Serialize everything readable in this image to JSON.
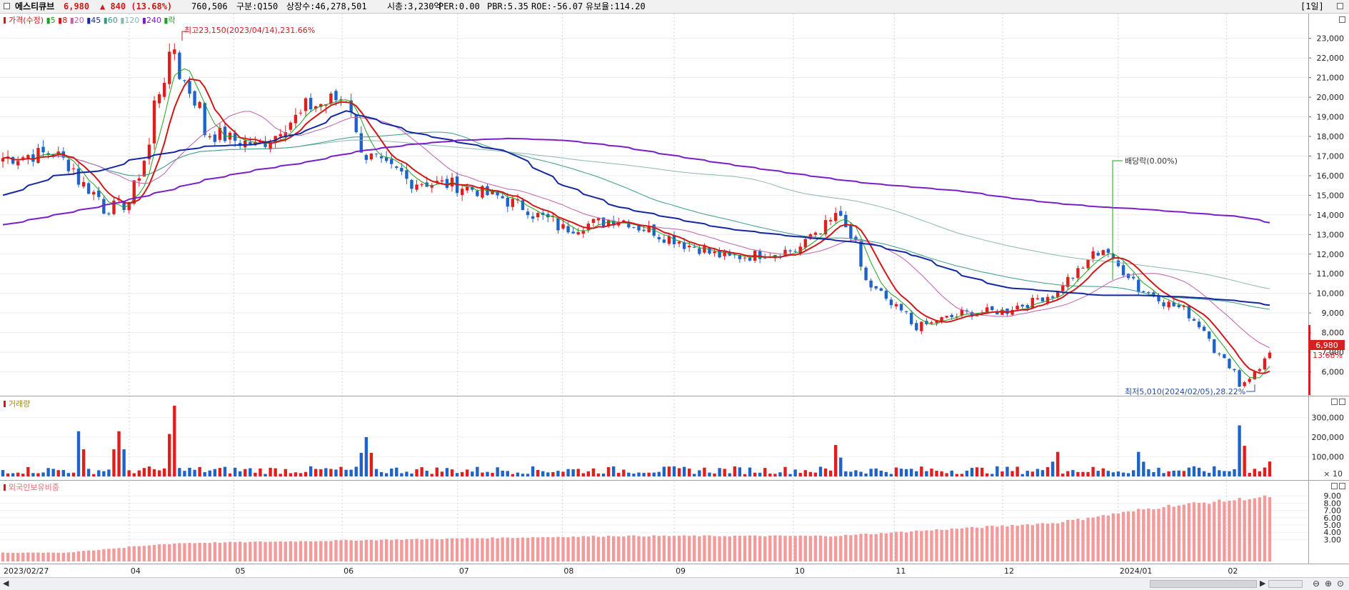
{
  "header": {
    "name": "에스티큐브",
    "price": "6,980",
    "change": "▲ 840 (13.68%)",
    "volume": "760,506",
    "category": "구분:Q150",
    "listed_shares": "상장수:46,278,501",
    "market_cap": "시총:3,230억",
    "per": "PER:0.00",
    "pbr": "PBR:5.35",
    "roe": "ROE:-56.07",
    "float": "유보율:114.20",
    "period": "[1일]"
  },
  "colors": {
    "up": "#e01e1e",
    "down": "#1e64c8",
    "ma5": "#1fa01f",
    "ma8": "#d01818",
    "ma20": "#c060b0",
    "ma45": "#1428a0",
    "ma60": "#3a9a8a",
    "ma120": "#8ab8b0",
    "ma240": "#7a1ec8",
    "foreign": "#f39a9a",
    "price_tag_bg": "#d42020"
  },
  "price_panel": {
    "legend": [
      {
        "label": "가격(수정)",
        "color": "#d01818"
      },
      {
        "label": "5",
        "color": "#1fa01f"
      },
      {
        "label": "8",
        "color": "#d01818"
      },
      {
        "label": "20",
        "color": "#c060b0"
      },
      {
        "label": "45",
        "color": "#1428a0"
      },
      {
        "label": "60",
        "color": "#3a9a8a"
      },
      {
        "label": "120",
        "color": "#8ab8b0"
      },
      {
        "label": "240",
        "color": "#7a1ec8"
      },
      {
        "label": "락",
        "color": "#1fa01f"
      }
    ],
    "high_annotation": "최고23,150(2023/04/14),231.66%",
    "low_annotation": "최저5,010(2024/02/05),28.22%",
    "dividend_annotation": "배당락(0.00%)",
    "current_tag": "6,980",
    "current_change_tag": "13.68%"
  },
  "volume_panel": {
    "label": "거래량",
    "multiplier": "× 10"
  },
  "foreign_panel": {
    "label": "외국인보유비중"
  },
  "x_axis_labels": [
    "2023/02/27",
    "04",
    "05",
    "06",
    "07",
    "08",
    "09",
    "10",
    "11",
    "12",
    "2024/01",
    "02"
  ],
  "chart_data": [
    {
      "type": "line",
      "title": "가격(수정)",
      "x": [
        "2023-02-27",
        "2023-03-13",
        "2023-03-27",
        "2023-04-03",
        "2023-04-14",
        "2023-04-24",
        "2023-05-08",
        "2023-05-22",
        "2023-06-01",
        "2023-06-07",
        "2023-06-20",
        "2023-07-03",
        "2023-07-17",
        "2023-08-01",
        "2023-08-16",
        "2023-09-01",
        "2023-09-15",
        "2023-10-04",
        "2023-10-16",
        "2023-10-25",
        "2023-11-07",
        "2023-11-20",
        "2023-12-01",
        "2023-12-15",
        "2023-12-28",
        "2024-01-08",
        "2024-01-22",
        "2024-02-05",
        "2024-02-13"
      ],
      "series": [
        {
          "name": "가격(수정)",
          "values": [
            16900,
            17200,
            14300,
            14700,
            22500,
            18200,
            17500,
            19500,
            20000,
            17000,
            15700,
            15500,
            14700,
            13300,
            13800,
            12700,
            11800,
            12200,
            14100,
            10300,
            8300,
            9000,
            9100,
            10000,
            12300,
            10200,
            8900,
            5300,
            6980
          ]
        },
        {
          "name": "45",
          "values": [
            15000,
            16000,
            16300,
            16800,
            17200,
            17500,
            17600,
            18300,
            19300,
            19000,
            18200,
            17700,
            17200,
            15500,
            14400,
            13800,
            13300,
            12900,
            12700,
            12500,
            11900,
            10900,
            10300,
            10100,
            9900,
            9900,
            9800,
            9600,
            9400
          ]
        },
        {
          "name": "240",
          "values": [
            13500,
            14000,
            14500,
            14800,
            15300,
            15800,
            16300,
            16700,
            17100,
            17300,
            17600,
            17800,
            17900,
            17800,
            17500,
            17000,
            16600,
            16100,
            15800,
            15600,
            15400,
            15200,
            14900,
            14600,
            14400,
            14300,
            14100,
            13900,
            13600
          ]
        }
      ],
      "ylim": [
        5000,
        23500
      ],
      "yticks": [
        "6,000",
        "7,000",
        "8,000",
        "9,000",
        "10,000",
        "11,000",
        "12,000",
        "13,000",
        "14,000",
        "15,000",
        "16,000",
        "17,000",
        "18,000",
        "19,000",
        "20,000",
        "21,000",
        "22,000",
        "23,000"
      ]
    },
    {
      "type": "bar",
      "title": "거래량",
      "categories": [
        "2023-03-20",
        "2023-03-30",
        "2023-04-14",
        "2023-06-07",
        "2023-10-16",
        "2023-12-15",
        "2024-01-08",
        "2024-02-05",
        "2024-02-13"
      ],
      "values": [
        230000,
        230000,
        360000,
        200000,
        160000,
        125000,
        125000,
        260000,
        76000
      ],
      "ylim": [
        0,
        360000
      ],
      "yticks": [
        "100,000",
        "200,000",
        "300,000"
      ]
    },
    {
      "type": "bar",
      "title": "외국인보유비중",
      "categories": [
        "2023-03",
        "2023-04",
        "2023-06",
        "2023-08",
        "2023-10",
        "2023-12",
        "2024-01",
        "2024-02"
      ],
      "values": [
        1.2,
        2.5,
        3.0,
        3.5,
        3.5,
        5.3,
        7.6,
        9.0
      ],
      "ylim": [
        0,
        10
      ],
      "yticks": [
        "3.00",
        "4.00",
        "5.00",
        "6.00",
        "7.00",
        "8.00",
        "9.00"
      ]
    }
  ]
}
